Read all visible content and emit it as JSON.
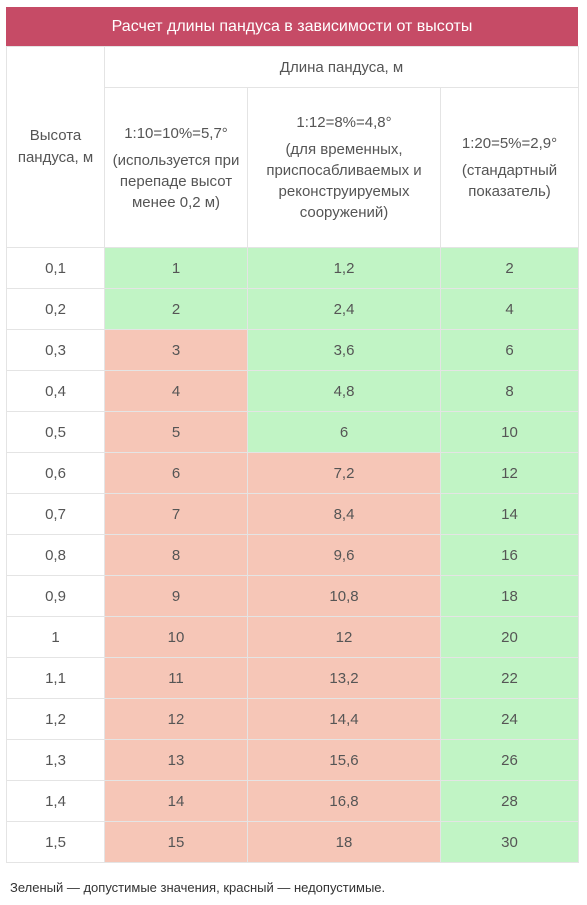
{
  "title": "Расчет длины пандуса в зависимости от высоты",
  "header": {
    "height_label": "Высота пандуса, м",
    "length_group": "Длина пандуса, м",
    "col1_line1": "1:10=10%=5,7°",
    "col1_line2": "(используется при перепаде высот менее 0,2 м)",
    "col2_line1": "1:12=8%=4,8°",
    "col2_line2": "(для временных, приспосабливаемых и реконструируемых сооружений)",
    "col3_line1": "1:20=5%=2,9°",
    "col3_line2": "(стандартный показатель)"
  },
  "rows": [
    {
      "h": "0,1",
      "c1": "1",
      "c2": "1,2",
      "c3": "2",
      "s1": "g",
      "s2": "g",
      "s3": "g"
    },
    {
      "h": "0,2",
      "c1": "2",
      "c2": "2,4",
      "c3": "4",
      "s1": "g",
      "s2": "g",
      "s3": "g"
    },
    {
      "h": "0,3",
      "c1": "3",
      "c2": "3,6",
      "c3": "6",
      "s1": "r",
      "s2": "g",
      "s3": "g"
    },
    {
      "h": "0,4",
      "c1": "4",
      "c2": "4,8",
      "c3": "8",
      "s1": "r",
      "s2": "g",
      "s3": "g"
    },
    {
      "h": "0,5",
      "c1": "5",
      "c2": "6",
      "c3": "10",
      "s1": "r",
      "s2": "g",
      "s3": "g"
    },
    {
      "h": "0,6",
      "c1": "6",
      "c2": "7,2",
      "c3": "12",
      "s1": "r",
      "s2": "r",
      "s3": "g"
    },
    {
      "h": "0,7",
      "c1": "7",
      "c2": "8,4",
      "c3": "14",
      "s1": "r",
      "s2": "r",
      "s3": "g"
    },
    {
      "h": "0,8",
      "c1": "8",
      "c2": "9,6",
      "c3": "16",
      "s1": "r",
      "s2": "r",
      "s3": "g"
    },
    {
      "h": "0,9",
      "c1": "9",
      "c2": "10,8",
      "c3": "18",
      "s1": "r",
      "s2": "r",
      "s3": "g"
    },
    {
      "h": "1",
      "c1": "10",
      "c2": "12",
      "c3": "20",
      "s1": "r",
      "s2": "r",
      "s3": "g"
    },
    {
      "h": "1,1",
      "c1": "11",
      "c2": "13,2",
      "c3": "22",
      "s1": "r",
      "s2": "r",
      "s3": "g"
    },
    {
      "h": "1,2",
      "c1": "12",
      "c2": "14,4",
      "c3": "24",
      "s1": "r",
      "s2": "r",
      "s3": "g"
    },
    {
      "h": "1,3",
      "c1": "13",
      "c2": "15,6",
      "c3": "26",
      "s1": "r",
      "s2": "r",
      "s3": "g"
    },
    {
      "h": "1,4",
      "c1": "14",
      "c2": "16,8",
      "c3": "28",
      "s1": "r",
      "s2": "r",
      "s3": "g"
    },
    {
      "h": "1,5",
      "c1": "15",
      "c2": "18",
      "c3": "30",
      "s1": "r",
      "s2": "r",
      "s3": "g"
    }
  ],
  "colors": {
    "title_bg": "#c64b66",
    "acceptable": "#c1f4c5",
    "unacceptable": "#f6c6b7"
  },
  "note": "Зеленый — допустимые значения, красный — недопустимые."
}
